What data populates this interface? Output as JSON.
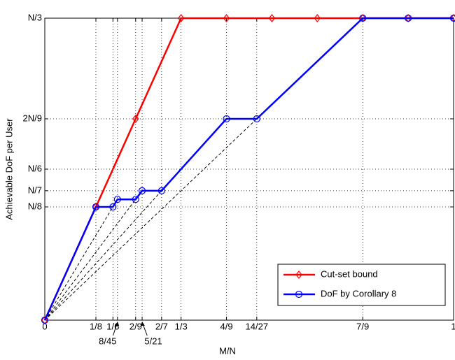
{
  "chart_data": {
    "type": "line",
    "xlabel": "M/N",
    "ylabel": "Achievable DoF per User",
    "xlim": [
      0,
      1
    ],
    "ylim": [
      0,
      0.333333
    ],
    "xticks": [
      0,
      {
        "value": 0.125,
        "label": "1/8"
      },
      {
        "value": 0.166667,
        "label": "1/6"
      },
      {
        "value": 0.177778,
        "label": "8/45"
      },
      {
        "value": 0.222222,
        "label": "2/9"
      },
      {
        "value": 0.238095,
        "label": "5/21"
      },
      {
        "value": 0.285714,
        "label": "2/7"
      },
      {
        "value": 0.333333,
        "label": "1/3"
      },
      {
        "value": 0.444444,
        "label": "4/9"
      },
      {
        "value": 0.518519,
        "label": "14/27"
      },
      {
        "value": 0.777778,
        "label": "7/9"
      },
      1
    ],
    "yticks": [
      {
        "value": 0.125,
        "label": "N/8"
      },
      {
        "value": 0.142857,
        "label": "N/7"
      },
      {
        "value": 0.166667,
        "label": "N/6"
      },
      {
        "value": 0.222222,
        "label": "2N/9"
      },
      {
        "value": 0.333333,
        "label": "N/3"
      }
    ],
    "grid": true,
    "legend": "lower right",
    "series": [
      {
        "name": "Cut-set bound",
        "color": "#ff0000",
        "marker": "diamond",
        "x": [
          0,
          0.125,
          0.222222,
          0.333333,
          0.444444,
          0.555556,
          0.666667,
          0.777778,
          0.888889,
          1
        ],
        "values": [
          0,
          0.125,
          0.222222,
          0.333333,
          0.333333,
          0.333333,
          0.333333,
          0.333333,
          0.333333,
          0.333333
        ]
      },
      {
        "name": "DoF by Corollary 8",
        "color": "#0000ff",
        "marker": "circle",
        "x": [
          0,
          0.125,
          0.166667,
          0.177778,
          0.222222,
          0.238095,
          0.285714,
          0.444444,
          0.518519,
          0.777778,
          0.888889,
          1
        ],
        "values": [
          0,
          0.125,
          0.125,
          0.133333,
          0.133333,
          0.142857,
          0.142857,
          0.222222,
          0.222222,
          0.333333,
          0.333333,
          0.333333
        ]
      }
    ]
  }
}
